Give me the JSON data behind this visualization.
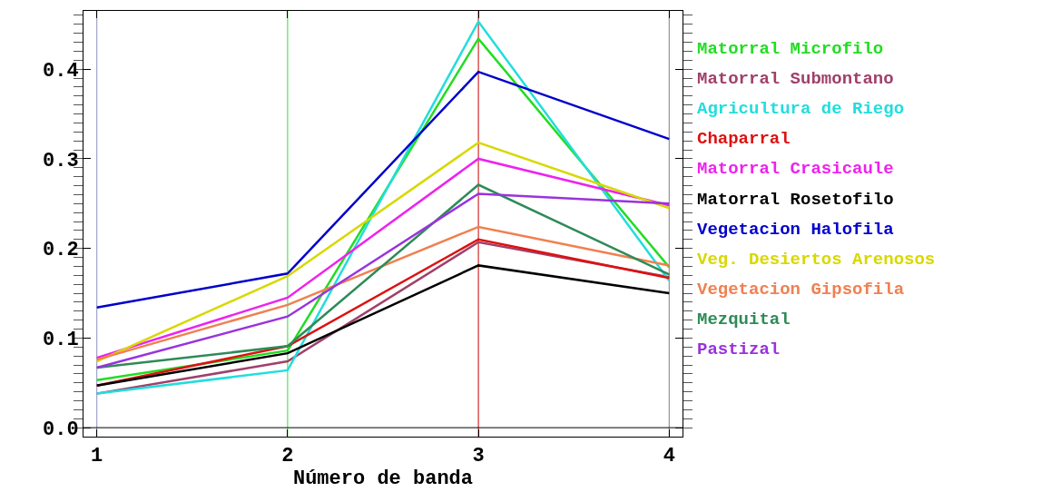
{
  "chart_data": {
    "type": "line",
    "xlabel": "Número de banda",
    "x": [
      1,
      2,
      3,
      4
    ],
    "xlim": [
      0.93,
      4.07
    ],
    "ylim": [
      -0.01,
      0.465
    ],
    "xticks": [
      1,
      2,
      3,
      4
    ],
    "yticks": [
      {
        "value": 0,
        "label": "0.0"
      },
      {
        "value": 0.1,
        "label": "0.1"
      },
      {
        "value": 0.2,
        "label": "0.2"
      },
      {
        "value": 0.3,
        "label": "0.3"
      },
      {
        "value": 0.4,
        "label": "0.4"
      }
    ],
    "grid": false,
    "legend": "right",
    "marker": "none",
    "line_style": "solid",
    "ref_lines": [
      {
        "axis": "x",
        "value": 1,
        "color": "#9090c0"
      },
      {
        "axis": "x",
        "value": 2,
        "color": "#33dd33"
      },
      {
        "axis": "x",
        "value": 3,
        "color": "#cc0000"
      },
      {
        "axis": "x",
        "value": 4,
        "color": "#808080"
      },
      {
        "axis": "y",
        "value": 0,
        "color": "#000000"
      }
    ],
    "series": [
      {
        "name": "Matorral Microfilo",
        "color": "#22dd22",
        "values": [
          0.053,
          0.086,
          0.434,
          0.179
        ]
      },
      {
        "name": "Matorral Submontano",
        "color": "#a0406a",
        "values": [
          0.038,
          0.074,
          0.207,
          0.168
        ]
      },
      {
        "name": "Agricultura de Riego",
        "color": "#22dddd",
        "values": [
          0.038,
          0.064,
          0.453,
          0.164
        ]
      },
      {
        "name": "Chaparral",
        "color": "#dd1111",
        "values": [
          0.047,
          0.091,
          0.21,
          0.167
        ]
      },
      {
        "name": "Matorral Crasicaule",
        "color": "#ee22ee",
        "values": [
          0.078,
          0.145,
          0.3,
          0.248
        ]
      },
      {
        "name": "Matorral Rosetofilo",
        "color": "#000000",
        "values": [
          0.047,
          0.083,
          0.181,
          0.15
        ]
      },
      {
        "name": "Vegetacion Halofila",
        "color": "#0000cc",
        "values": [
          0.134,
          0.172,
          0.397,
          0.322
        ]
      },
      {
        "name": "Veg. Desiertos Arenosos",
        "color": "#d8d800",
        "values": [
          0.074,
          0.169,
          0.318,
          0.245
        ]
      },
      {
        "name": "Vegetacion Gipsofila",
        "color": "#f08050",
        "values": [
          0.076,
          0.137,
          0.224,
          0.181
        ]
      },
      {
        "name": "Mezquital",
        "color": "#2e8b57",
        "values": [
          0.067,
          0.091,
          0.271,
          0.171
        ]
      },
      {
        "name": "Pastizal",
        "color": "#9933dd",
        "values": [
          0.067,
          0.124,
          0.261,
          0.25
        ]
      }
    ]
  }
}
